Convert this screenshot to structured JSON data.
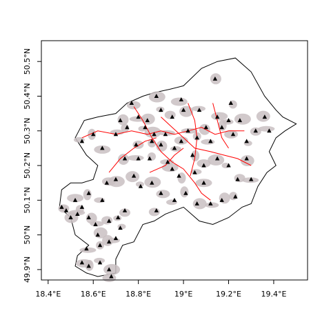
{
  "map": {
    "x_ticks": [
      {
        "lon": 18.4,
        "label": "18.4°E"
      },
      {
        "lon": 18.6,
        "label": "18.6°E"
      },
      {
        "lon": 18.8,
        "label": "18.8°E"
      },
      {
        "lon": 19.0,
        "label": "19°E"
      },
      {
        "lon": 19.2,
        "label": "19.2°E"
      },
      {
        "lon": 19.4,
        "label": "19.4°E"
      }
    ],
    "y_ticks": [
      {
        "lat": 49.9,
        "label": "49.9°N"
      },
      {
        "lat": 50.0,
        "label": "50°N"
      },
      {
        "lat": 50.1,
        "label": "50.1°N"
      },
      {
        "lat": 50.2,
        "label": "50.2°N"
      },
      {
        "lat": 50.3,
        "label": "50.3°N"
      },
      {
        "lat": 50.4,
        "label": "50.4°N"
      },
      {
        "lat": 50.5,
        "label": "50.5°N"
      }
    ],
    "xlim": [
      18.37,
      19.55
    ],
    "ylim": [
      49.87,
      50.56
    ],
    "colors": {
      "boundary": "#000000",
      "urban_fill": "#c9bfc2",
      "roads": "#ff0000",
      "markers": "#000000"
    },
    "points": [
      [
        18.48,
        50.07
      ],
      [
        18.46,
        50.08
      ],
      [
        18.5,
        50.05
      ],
      [
        18.53,
        50.06
      ],
      [
        18.55,
        50.08
      ],
      [
        18.58,
        50.05
      ],
      [
        18.61,
        50.03
      ],
      [
        18.52,
        50.1
      ],
      [
        18.58,
        50.12
      ],
      [
        18.64,
        50.1
      ],
      [
        18.66,
        50.15
      ],
      [
        18.7,
        50.16
      ],
      [
        18.71,
        50.05
      ],
      [
        18.67,
        50.04
      ],
      [
        18.62,
        50.0
      ],
      [
        18.57,
        49.96
      ],
      [
        18.63,
        49.97
      ],
      [
        18.67,
        49.98
      ],
      [
        18.7,
        49.99
      ],
      [
        18.55,
        49.92
      ],
      [
        18.58,
        49.91
      ],
      [
        18.63,
        49.92
      ],
      [
        18.68,
        49.88
      ],
      [
        18.67,
        49.9
      ],
      [
        18.72,
        50.02
      ],
      [
        18.74,
        50.07
      ],
      [
        18.78,
        50.17
      ],
      [
        18.8,
        50.22
      ],
      [
        18.85,
        50.22
      ],
      [
        18.9,
        50.26
      ],
      [
        18.93,
        50.21
      ],
      [
        18.95,
        50.19
      ],
      [
        18.98,
        50.17
      ],
      [
        18.96,
        50.25
      ],
      [
        18.99,
        50.27
      ],
      [
        18.87,
        50.29
      ],
      [
        18.83,
        50.31
      ],
      [
        18.79,
        50.26
      ],
      [
        18.84,
        50.33
      ],
      [
        18.8,
        50.34
      ],
      [
        18.75,
        50.31
      ],
      [
        18.72,
        50.33
      ],
      [
        18.7,
        50.29
      ],
      [
        18.64,
        50.25
      ],
      [
        18.6,
        50.29
      ],
      [
        18.55,
        50.27
      ],
      [
        18.77,
        50.38
      ],
      [
        18.88,
        50.4
      ],
      [
        18.9,
        50.36
      ],
      [
        18.95,
        50.34
      ],
      [
        19.0,
        50.36
      ],
      [
        19.02,
        50.3
      ],
      [
        19.06,
        50.28
      ],
      [
        19.1,
        50.31
      ],
      [
        19.12,
        50.27
      ],
      [
        19.15,
        50.34
      ],
      [
        19.17,
        50.31
      ],
      [
        19.2,
        50.33
      ],
      [
        19.22,
        50.29
      ],
      [
        19.25,
        50.33
      ],
      [
        19.28,
        50.27
      ],
      [
        19.32,
        50.3
      ],
      [
        19.36,
        50.34
      ],
      [
        19.38,
        50.3
      ],
      [
        19.21,
        50.38
      ],
      [
        19.14,
        50.45
      ],
      [
        19.07,
        50.36
      ],
      [
        18.99,
        50.39
      ],
      [
        19.04,
        50.23
      ],
      [
        19.05,
        50.18
      ],
      [
        19.09,
        50.2
      ],
      [
        19.15,
        50.22
      ],
      [
        19.2,
        50.2
      ],
      [
        19.24,
        50.16
      ],
      [
        19.28,
        50.22
      ],
      [
        19.3,
        50.16
      ],
      [
        19.23,
        50.11
      ],
      [
        19.17,
        50.1
      ],
      [
        19.12,
        50.09
      ],
      [
        19.09,
        50.15
      ],
      [
        19.01,
        50.12
      ],
      [
        18.96,
        50.1
      ],
      [
        18.9,
        50.12
      ],
      [
        18.86,
        50.15
      ],
      [
        18.81,
        50.14
      ],
      [
        18.88,
        50.07
      ],
      [
        19.06,
        50.09
      ],
      [
        18.92,
        50.29
      ],
      [
        18.86,
        50.27
      ],
      [
        18.74,
        50.22
      ]
    ],
    "regions": [
      [
        [
          18.45,
          50.08
        ],
        [
          18.5,
          50.05
        ],
        [
          18.52,
          50.0
        ],
        [
          18.58,
          49.97
        ],
        [
          18.53,
          49.94
        ],
        [
          18.52,
          49.91
        ],
        [
          18.57,
          49.89
        ],
        [
          18.62,
          49.88
        ],
        [
          18.7,
          49.89
        ],
        [
          18.7,
          49.93
        ],
        [
          18.73,
          49.97
        ],
        [
          18.78,
          49.98
        ],
        [
          18.82,
          50.03
        ],
        [
          18.87,
          50.04
        ],
        [
          18.92,
          50.06
        ],
        [
          19.0,
          50.08
        ],
        [
          19.07,
          50.04
        ],
        [
          19.13,
          50.03
        ],
        [
          19.2,
          50.05
        ],
        [
          19.26,
          50.08
        ],
        [
          19.3,
          50.09
        ],
        [
          19.33,
          50.14
        ],
        [
          19.37,
          50.18
        ],
        [
          19.41,
          50.2
        ],
        [
          19.38,
          50.24
        ],
        [
          19.41,
          50.28
        ],
        [
          19.45,
          50.3
        ],
        [
          19.5,
          50.32
        ],
        [
          19.44,
          50.34
        ],
        [
          19.41,
          50.36
        ],
        [
          19.36,
          50.4
        ],
        [
          19.3,
          50.47
        ],
        [
          19.23,
          50.51
        ],
        [
          19.15,
          50.5
        ],
        [
          19.08,
          50.48
        ],
        [
          19.0,
          50.43
        ],
        [
          18.94,
          50.42
        ],
        [
          18.87,
          50.41
        ],
        [
          18.82,
          50.4
        ],
        [
          18.75,
          50.38
        ],
        [
          18.7,
          50.35
        ],
        [
          18.62,
          50.34
        ],
        [
          18.56,
          50.33
        ],
        [
          18.52,
          50.28
        ],
        [
          18.57,
          50.23
        ],
        [
          18.62,
          50.2
        ],
        [
          18.6,
          50.16
        ],
        [
          18.55,
          50.15
        ],
        [
          18.5,
          50.15
        ],
        [
          18.46,
          50.13
        ],
        [
          18.45,
          50.08
        ]
      ]
    ],
    "roads": [
      [
        [
          18.55,
          50.28
        ],
        [
          18.62,
          50.3
        ],
        [
          18.7,
          50.29
        ],
        [
          18.77,
          50.3
        ],
        [
          18.84,
          50.29
        ],
        [
          18.9,
          50.3
        ],
        [
          18.96,
          50.29
        ],
        [
          19.02,
          50.3
        ],
        [
          19.08,
          50.31
        ],
        [
          19.14,
          50.29
        ],
        [
          19.2,
          50.3
        ],
        [
          19.27,
          50.3
        ]
      ],
      [
        [
          18.78,
          50.37
        ],
        [
          18.82,
          50.33
        ],
        [
          18.86,
          50.28
        ],
        [
          18.9,
          50.24
        ],
        [
          18.95,
          50.21
        ],
        [
          19.0,
          50.19
        ],
        [
          19.05,
          50.15
        ],
        [
          19.08,
          50.12
        ],
        [
          19.12,
          50.1
        ]
      ],
      [
        [
          18.9,
          50.34
        ],
        [
          18.95,
          50.31
        ],
        [
          19.0,
          50.28
        ],
        [
          19.05,
          50.25
        ],
        [
          19.12,
          50.24
        ],
        [
          19.18,
          50.23
        ],
        [
          19.24,
          50.22
        ],
        [
          19.3,
          50.2
        ]
      ],
      [
        [
          18.67,
          50.18
        ],
        [
          18.72,
          50.22
        ],
        [
          18.78,
          50.25
        ],
        [
          18.83,
          50.27
        ],
        [
          18.88,
          50.28
        ]
      ],
      [
        [
          19.02,
          50.38
        ],
        [
          19.05,
          50.33
        ],
        [
          19.06,
          50.28
        ],
        [
          19.05,
          50.22
        ],
        [
          19.03,
          50.17
        ]
      ],
      [
        [
          19.13,
          50.38
        ],
        [
          19.15,
          50.33
        ],
        [
          19.17,
          50.28
        ],
        [
          19.2,
          50.25
        ]
      ],
      [
        [
          18.85,
          50.18
        ],
        [
          18.92,
          50.2
        ],
        [
          18.96,
          50.23
        ],
        [
          19.0,
          50.25
        ]
      ]
    ]
  }
}
